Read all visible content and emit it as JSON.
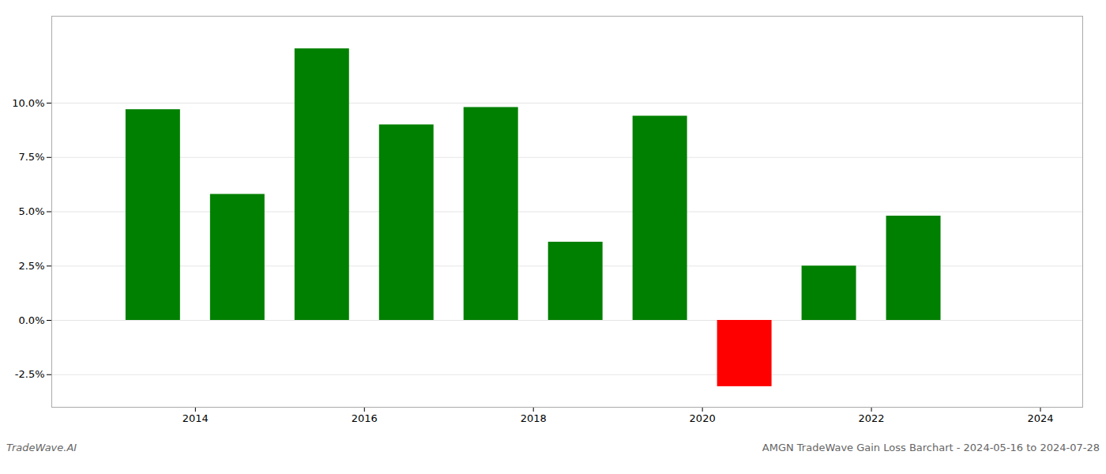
{
  "chart_data": {
    "type": "bar",
    "title": "AMGN TradeWave Gain Loss Barchart - 2024-05-16 to 2024-07-28",
    "annotations": [
      "TradeWave.AI"
    ],
    "x": [
      2013,
      2014,
      2015,
      2016,
      2017,
      2018,
      2019,
      2020,
      2021,
      2022
    ],
    "values": [
      9.7,
      5.8,
      12.5,
      9.0,
      9.8,
      3.6,
      9.4,
      -3.05,
      2.5,
      4.8
    ],
    "colors": [
      "#008000",
      "#008000",
      "#008000",
      "#008000",
      "#008000",
      "#008000",
      "#008000",
      "#ff0000",
      "#008000",
      "#008000"
    ],
    "xlim": [
      2012.3,
      2024.5
    ],
    "xticks": [
      2014,
      2016,
      2018,
      2020,
      2022,
      2024
    ],
    "ylim": [
      -4.0,
      14.0
    ],
    "yticks": [
      {
        "value": -2.5,
        "label": "-2.5%"
      },
      {
        "value": 0.0,
        "label": "0.0%"
      },
      {
        "value": 2.5,
        "label": "2.5%"
      },
      {
        "value": 5.0,
        "label": "5.0%"
      },
      {
        "value": 7.5,
        "label": "7.5%"
      },
      {
        "value": 10.0,
        "label": "10.0%"
      }
    ],
    "grid": true
  }
}
